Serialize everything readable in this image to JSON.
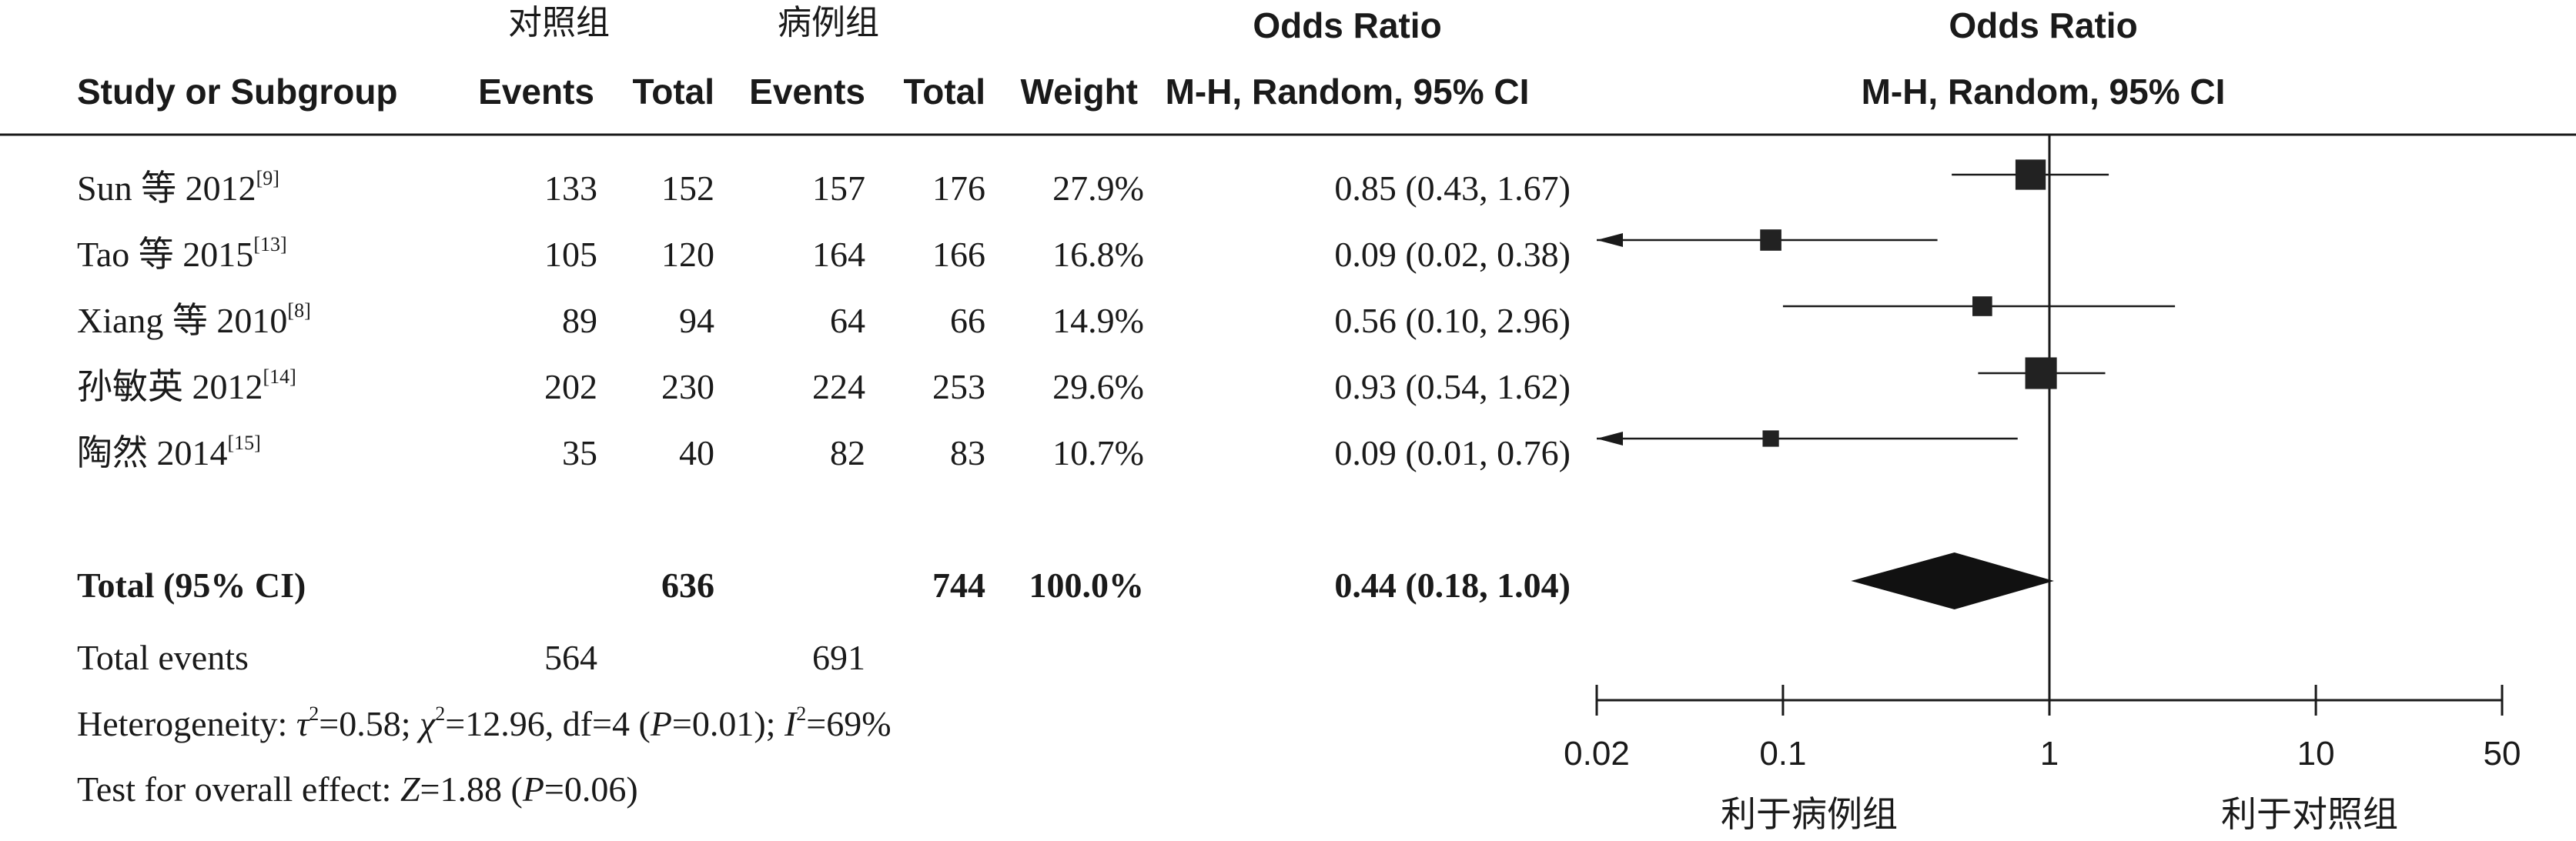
{
  "header": {
    "group1": "对照组",
    "group2": "病例组",
    "or_title_left": "Odds Ratio",
    "or_title_right": "Odds Ratio",
    "study_col": "Study or Subgroup",
    "events1": "Events",
    "total1": "Total",
    "events2": "Events",
    "total2": "Total",
    "weight": "Weight",
    "method_left": "M-H, Random, 95% CI",
    "method_right": "M-H, Random, 95% CI"
  },
  "studies": [
    {
      "name": "Sun 等 2012",
      "ref": "[9]",
      "events1": "133",
      "total1": "152",
      "events2": "157",
      "total2": "176",
      "weight": "27.9%",
      "ci_text": "0.85 (0.43, 1.67)"
    },
    {
      "name": "Tao 等 2015",
      "ref": "[13]",
      "events1": "105",
      "total1": "120",
      "events2": "164",
      "total2": "166",
      "weight": "16.8%",
      "ci_text": "0.09 (0.02, 0.38)"
    },
    {
      "name": "Xiang 等 2010",
      "ref": "[8]",
      "events1": "89",
      "total1": "94",
      "events2": "64",
      "total2": "66",
      "weight": "14.9%",
      "ci_text": "0.56 (0.10, 2.96)"
    },
    {
      "name": "孙敏英 2012",
      "ref": "[14]",
      "events1": "202",
      "total1": "230",
      "events2": "224",
      "total2": "253",
      "weight": "29.6%",
      "ci_text": "0.93 (0.54, 1.62)"
    },
    {
      "name": "陶然 2014",
      "ref": "[15]",
      "events1": "35",
      "total1": "40",
      "events2": "82",
      "total2": "83",
      "weight": "10.7%",
      "ci_text": "0.09 (0.01, 0.76)"
    }
  ],
  "total": {
    "label": "Total (95% CI)",
    "total1": "636",
    "total2": "744",
    "weight": "100.0%",
    "ci_text": "0.44 (0.18, 1.04)"
  },
  "total_events": {
    "label": "Total events",
    "events1": "564",
    "events2": "691"
  },
  "heterogeneity": {
    "prefix": "Heterogeneity: ",
    "tau_sym": "τ",
    "tau_rest": "=0.58; ",
    "chi_sym": "χ",
    "chi_rest": "=12.96, df=4 (",
    "p1_sym": "P",
    "p1_rest": "=0.01); ",
    "i_sym": "I",
    "i_rest": "=69%",
    "sup2": "2"
  },
  "overall": {
    "prefix": "Test for overall effect: ",
    "z_sym": "Z",
    "z_rest": "=1.88 (",
    "p_sym": "P",
    "p_rest": "=0.06)"
  },
  "favors": {
    "left": "利于病例组",
    "right": "利于对照组"
  },
  "colors": {
    "ink": "#1a1a1a",
    "marker": "#222222"
  },
  "chart_data": {
    "type": "forest",
    "scale": "log",
    "xlim": [
      0.02,
      50
    ],
    "reference_line": 1,
    "x_ticks": [
      {
        "value": 0.02,
        "label": "0.02"
      },
      {
        "value": 0.1,
        "label": "0.1"
      },
      {
        "value": 1,
        "label": "1"
      },
      {
        "value": 10,
        "label": "10"
      },
      {
        "value": 50,
        "label": "50"
      }
    ],
    "studies": [
      {
        "study": "Sun 等 2012",
        "or": 0.85,
        "lower": 0.43,
        "upper": 1.67,
        "weight": 27.9
      },
      {
        "study": "Tao 等 2015",
        "or": 0.09,
        "lower": 0.02,
        "upper": 0.38,
        "weight": 16.8
      },
      {
        "study": "Xiang 等 2010",
        "or": 0.56,
        "lower": 0.1,
        "upper": 2.96,
        "weight": 14.9
      },
      {
        "study": "孙敏英 2012",
        "or": 0.93,
        "lower": 0.54,
        "upper": 1.62,
        "weight": 29.6
      },
      {
        "study": "陶然 2014",
        "or": 0.09,
        "lower": 0.01,
        "upper": 0.76,
        "weight": 10.7
      }
    ],
    "pooled": {
      "or": 0.44,
      "lower": 0.18,
      "upper": 1.04
    }
  }
}
